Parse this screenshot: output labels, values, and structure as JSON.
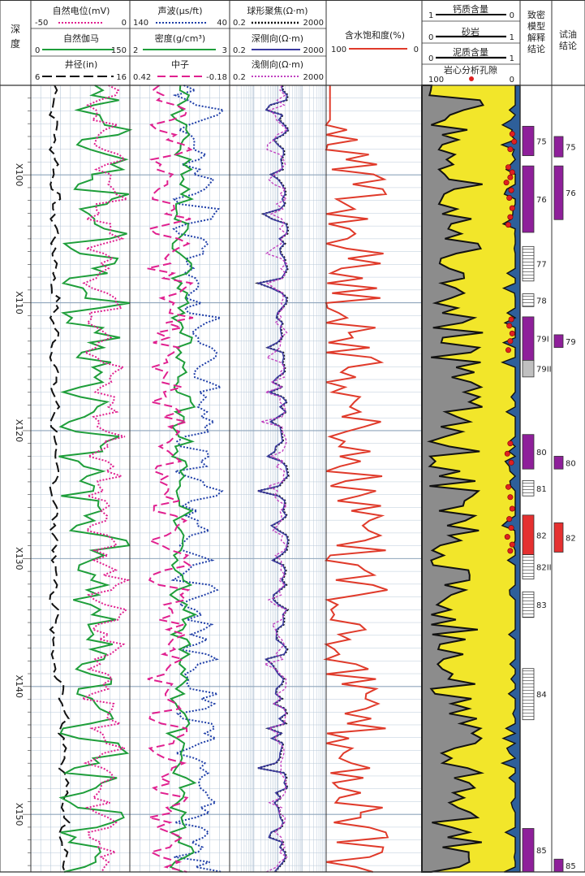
{
  "headers": {
    "depth": "深\n度",
    "sp": {
      "label": "自然电位(mV)",
      "min": "-50",
      "max": "0"
    },
    "gr": {
      "label": "自然伽马",
      "min": "0",
      "max": "150"
    },
    "cal": {
      "label": "井径(in)",
      "min": "6",
      "max": "16"
    },
    "ac": {
      "label": "声波(μs/ft)",
      "min": "140",
      "max": "40"
    },
    "den": {
      "label": "密度(g/cm³)",
      "min": "2",
      "max": "3"
    },
    "cnl": {
      "label": "中子",
      "min": "0.42",
      "max": "-0.18"
    },
    "rfoc": {
      "label": "球形聚焦(Ω·m)",
      "min": "0.2",
      "max": "2000"
    },
    "rd": {
      "label": "深侧向(Ω·m)",
      "min": "0.2",
      "max": "2000"
    },
    "rs": {
      "label": "浅侧向(Ω·m)",
      "min": "0.2",
      "max": "2000"
    },
    "sw": {
      "label": "含水饱和度(%)",
      "min": "100",
      "max": "0"
    },
    "calc": {
      "label": "钙质含量",
      "min": "1",
      "max": "0"
    },
    "sand": {
      "label": "砂岩",
      "min": "0",
      "max": "1"
    },
    "shale": {
      "label": "泥质含量",
      "min": "0",
      "max": "1"
    },
    "por": {
      "label": "岩心分析孔隙",
      "min": "100",
      "max": "0"
    },
    "interp": "致密\n模型\n解释\n结论",
    "test": "试油\n结论"
  },
  "depth_labels": [
    "X100",
    "X110",
    "X120",
    "X130",
    "X140",
    "X150"
  ],
  "colors": {
    "sp": "#e0208f",
    "gr": "#1e9e3a",
    "cal": "#111111",
    "ac": "#1f3fa8",
    "den": "#1e9e3a",
    "cnl": "#e0208f",
    "rfoc": "#111111",
    "rd": "#3a3aa0",
    "rs": "#c040c0",
    "sw": "#e03a2a",
    "shale_fill": "#8c8c8c",
    "sand_fill": "#f2e62a",
    "calc_fill": "#2e5f9a",
    "por_point": "#e02020",
    "oil_layer": "#8e1f9a",
    "gas_layer": "#e53030",
    "dry_layer": "#c0c0c0",
    "grid": "#b8c8d8"
  },
  "chart_data": {
    "type": "well-log",
    "depth_axis": {
      "min": 93.0,
      "max": 154.5,
      "unit": "m (X prefix)",
      "labels": [
        "X100",
        "X110",
        "X120",
        "X130",
        "X140",
        "X150"
      ]
    },
    "interpretation_layers": [
      {
        "label": "75",
        "top": 96.2,
        "bottom": 98.5,
        "class": "oil"
      },
      {
        "label": "76",
        "top": 99.3,
        "bottom": 104.5,
        "class": "oil"
      },
      {
        "label": "77",
        "top": 105.6,
        "bottom": 108.3,
        "class": "dry"
      },
      {
        "label": "78",
        "top": 109.3,
        "bottom": 110.3,
        "class": "dry"
      },
      {
        "label": "79I",
        "top": 111.1,
        "bottom": 114.5,
        "class": "oil"
      },
      {
        "label": "79II",
        "top": 114.5,
        "bottom": 115.8,
        "class": "grey"
      },
      {
        "label": "80",
        "top": 120.3,
        "bottom": 123.0,
        "class": "oil"
      },
      {
        "label": "81",
        "top": 123.9,
        "bottom": 125.1,
        "class": "dry"
      },
      {
        "label": "82",
        "top": 126.6,
        "bottom": 129.7,
        "class": "gas"
      },
      {
        "label": "82II",
        "top": 129.7,
        "bottom": 131.6,
        "class": "dry"
      },
      {
        "label": "83",
        "top": 132.6,
        "bottom": 134.6,
        "class": "dry"
      },
      {
        "label": "84",
        "top": 138.6,
        "bottom": 142.6,
        "class": "dry"
      },
      {
        "label": "85",
        "top": 151.1,
        "bottom": 155.0,
        "class": "oil"
      }
    ],
    "test_layers": [
      {
        "label": "75",
        "top": 97.0,
        "bottom": 98.6,
        "class": "oil"
      },
      {
        "label": "76",
        "top": 99.3,
        "bottom": 103.5,
        "class": "oil"
      },
      {
        "label": "79",
        "top": 112.5,
        "bottom": 113.5,
        "class": "oil"
      },
      {
        "label": "80",
        "top": 122.0,
        "bottom": 123.0,
        "class": "oil"
      },
      {
        "label": "82",
        "top": 127.2,
        "bottom": 129.5,
        "class": "gas"
      },
      {
        "label": "85",
        "top": 153.5,
        "bottom": 155.5,
        "class": "oil"
      }
    ],
    "core_porosity_points": [
      {
        "depth": 96.8,
        "value": 8
      },
      {
        "depth": 97.4,
        "value": 6
      },
      {
        "depth": 98.0,
        "value": 10
      },
      {
        "depth": 99.4,
        "value": 12
      },
      {
        "depth": 99.8,
        "value": 8
      },
      {
        "depth": 100.2,
        "value": 10
      },
      {
        "depth": 100.6,
        "value": 14
      },
      {
        "depth": 101.2,
        "value": 9
      },
      {
        "depth": 101.8,
        "value": 11
      },
      {
        "depth": 102.6,
        "value": 8
      },
      {
        "depth": 103.3,
        "value": 10
      },
      {
        "depth": 103.9,
        "value": 12
      },
      {
        "depth": 111.3,
        "value": 9
      },
      {
        "depth": 111.8,
        "value": 11
      },
      {
        "depth": 112.4,
        "value": 8
      },
      {
        "depth": 113.0,
        "value": 10
      },
      {
        "depth": 113.7,
        "value": 12
      },
      {
        "depth": 121.0,
        "value": 10
      },
      {
        "depth": 121.8,
        "value": 13
      },
      {
        "depth": 122.5,
        "value": 9
      },
      {
        "depth": 124.4,
        "value": 12
      },
      {
        "depth": 125.2,
        "value": 10
      },
      {
        "depth": 126.1,
        "value": 8
      },
      {
        "depth": 126.9,
        "value": 11
      },
      {
        "depth": 127.6,
        "value": 9
      },
      {
        "depth": 128.3,
        "value": 13
      },
      {
        "depth": 128.9,
        "value": 8
      },
      {
        "depth": 129.4,
        "value": 10
      }
    ]
  }
}
